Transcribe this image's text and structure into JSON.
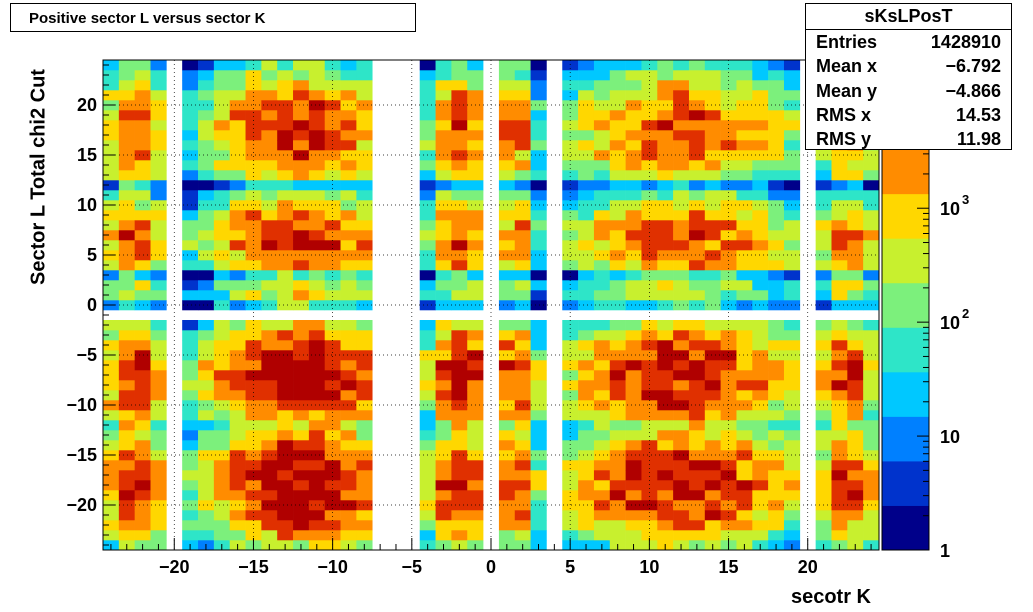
{
  "title": "Positive sector L versus sector K",
  "stats": {
    "name": "sKsLPosT",
    "rows": [
      {
        "label": "Entries",
        "value": "1428910"
      },
      {
        "label": "Mean x",
        "value": "−6.792"
      },
      {
        "label": "Mean y",
        "value": "−4.866"
      },
      {
        "label": "RMS x",
        "value": "14.53"
      },
      {
        "label": "RMS y",
        "value": "11.98"
      }
    ]
  },
  "chart_data": {
    "type": "heatmap",
    "xlabel": "secotr K",
    "ylabel": "Sector L  Total chi2 Cut",
    "xlim": [
      -24.5,
      24.5
    ],
    "ylim": [
      -24.5,
      24.5
    ],
    "x_ticks": [
      -20,
      -15,
      -10,
      -5,
      0,
      5,
      10,
      15,
      20
    ],
    "y_ticks": [
      -20,
      -15,
      -10,
      -5,
      0,
      5,
      10,
      15,
      20
    ],
    "x_tick_labels": [
      "−20",
      "−15",
      "−10",
      "−5",
      "0",
      "5",
      "10",
      "15",
      "20"
    ],
    "y_tick_labels": [
      "−20",
      "−15",
      "−10",
      "−5",
      "0",
      "5",
      "10",
      "15",
      "20"
    ],
    "z_scale": "log",
    "z_range": [
      1,
      20000
    ],
    "z_ticks": [
      {
        "value": 1,
        "label": "1"
      },
      {
        "value": 10,
        "label": "10"
      },
      {
        "value": 100,
        "label": "10",
        "exp": "2"
      },
      {
        "value": 1000,
        "label": "10",
        "exp": "3"
      }
    ],
    "grid": true,
    "palette": [
      "#00008a",
      "#0033cc",
      "#0080ff",
      "#00c8ff",
      "#2ee5c8",
      "#7cf07c",
      "#c8f02e",
      "#ffd700",
      "#ff8c00",
      "#e03000",
      "#b00000"
    ],
    "x_bands": [
      {
        "range": [
          -24,
          -21
        ],
        "peak": -22.5,
        "w": 0.65
      },
      {
        "range": [
          -19,
          -8
        ],
        "peak": -12,
        "w": 1
      },
      {
        "range": [
          -4,
          -1
        ],
        "peak": -2,
        "w": 0.7
      },
      {
        "range": [
          1,
          3
        ],
        "peak": 1.5,
        "w": 0.4
      },
      {
        "range": [
          5,
          19
        ],
        "peak": 12,
        "w": 0.6
      },
      {
        "range": [
          21,
          24
        ],
        "peak": 22.5,
        "w": 0.45
      }
    ],
    "y_bands": [
      {
        "range": [
          -24,
          -13
        ],
        "peak": -18,
        "w": 1
      },
      {
        "range": [
          -12,
          -2
        ],
        "peak": -7,
        "w": 1
      },
      {
        "range": [
          0,
          3
        ],
        "peak": 1.5,
        "w": 0.05
      },
      {
        "range": [
          4,
          12
        ],
        "peak": 6.5,
        "w": 0.5
      },
      {
        "range": [
          13,
          24
        ],
        "peak": 17.5,
        "w": 0.45
      }
    ],
    "peak_counts": 15000
  }
}
